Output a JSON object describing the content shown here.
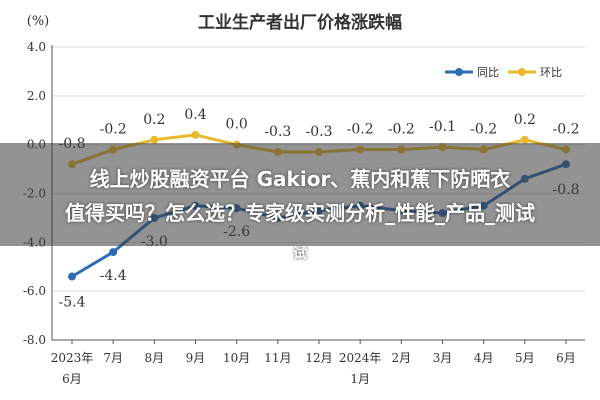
{
  "chart_data": {
    "type": "line",
    "title": "工业生产者出厂价格涨跌幅",
    "ylabel": "(%)",
    "ylim": [
      -8.0,
      4.0
    ],
    "yticks": [
      "4.0",
      "2.0",
      "0.0",
      "-2.0",
      "-4.0",
      "-6.0",
      "-8.0"
    ],
    "ytick_values": [
      4.0,
      2.0,
      0.0,
      -2.0,
      -4.0,
      -6.0,
      -8.0
    ],
    "categories": [
      [
        "2023年",
        "6月"
      ],
      [
        "7月"
      ],
      [
        "8月"
      ],
      [
        "9月"
      ],
      [
        "10月"
      ],
      [
        "11月"
      ],
      [
        "12月"
      ],
      [
        "2024年",
        "1月"
      ],
      [
        "2月"
      ],
      [
        "3月"
      ],
      [
        "4月"
      ],
      [
        "5月"
      ],
      [
        "6月"
      ]
    ],
    "series": [
      {
        "name": "同比",
        "color": "#2e6db5",
        "values": [
          -5.4,
          -4.4,
          -3.0,
          -2.5,
          -2.6,
          -3.0,
          -2.7,
          -2.5,
          -2.7,
          -2.8,
          -2.5,
          -1.4,
          -0.8
        ],
        "labels": [
          "-5.4",
          "-4.4",
          "-3.0",
          "",
          "-2.6",
          "",
          "",
          "",
          "",
          "",
          "",
          "",
          "-0.8"
        ]
      },
      {
        "name": "环比",
        "color": "#e8b92f",
        "values": [
          -0.8,
          -0.2,
          0.2,
          0.4,
          0.0,
          -0.3,
          -0.3,
          -0.2,
          -0.2,
          -0.1,
          -0.2,
          0.2,
          -0.2
        ],
        "labels": [
          "-0.8",
          "-0.2",
          "0.2",
          "0.4",
          "0.0",
          "-0.3",
          "-0.3",
          "-0.2",
          "-0.2",
          "-0.1",
          "-0.2",
          "0.2",
          "-0.2"
        ]
      }
    ],
    "legend_position": "top-right",
    "grid": true
  },
  "overlay": {
    "line1": "线上炒股融资平台 Gakior、蕉内和蕉下防晒衣",
    "line2": "值得买吗？怎么选？专家级实测分析_性能_产品_测试",
    "line3": "试"
  },
  "colors": {
    "axis": "#555555",
    "grid": "#d9d9d9",
    "text": "#333333"
  }
}
